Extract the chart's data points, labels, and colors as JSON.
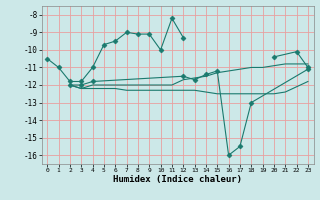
{
  "xlabel": "Humidex (Indice chaleur)",
  "ylabel": "",
  "background_color": "#cce8e8",
  "grid_color": "#e8a0a0",
  "line_color": "#1a7a6e",
  "xlim": [
    -0.5,
    23.5
  ],
  "ylim": [
    -16.5,
    -7.5
  ],
  "yticks": [
    -8,
    -9,
    -10,
    -11,
    -12,
    -13,
    -14,
    -15,
    -16
  ],
  "xticks": [
    0,
    1,
    2,
    3,
    4,
    5,
    6,
    7,
    8,
    9,
    10,
    11,
    12,
    13,
    14,
    15,
    16,
    17,
    18,
    19,
    20,
    21,
    22,
    23
  ],
  "lines": [
    {
      "x": [
        0,
        1,
        2,
        3,
        4,
        5,
        6,
        7,
        8,
        9,
        10,
        11,
        12
      ],
      "y": [
        -10.5,
        -11.0,
        -11.8,
        -11.8,
        -11.0,
        -9.7,
        -9.5,
        -9.0,
        -9.1,
        -9.1,
        -10.0,
        -8.2,
        -9.3
      ],
      "marker": "D",
      "markersize": 2.5
    },
    {
      "x": [
        20,
        22,
        23
      ],
      "y": [
        -10.4,
        -10.1,
        -11.0
      ],
      "marker": "D",
      "markersize": 2.5
    },
    {
      "x": [
        2,
        3,
        4,
        12,
        13,
        14,
        15,
        16,
        17,
        18,
        23
      ],
      "y": [
        -12.0,
        -12.0,
        -11.8,
        -11.5,
        -11.7,
        -11.4,
        -11.2,
        -16.0,
        -15.5,
        -13.0,
        -11.1
      ],
      "marker": "D",
      "markersize": 2.5
    },
    {
      "x": [
        2,
        3,
        4,
        5,
        6,
        7,
        8,
        9,
        10,
        11,
        12,
        13,
        14,
        15,
        16,
        17,
        18,
        19,
        20,
        21,
        23
      ],
      "y": [
        -12.0,
        -12.2,
        -12.0,
        -12.0,
        -12.0,
        -12.0,
        -12.0,
        -12.0,
        -12.0,
        -12.0,
        -11.7,
        -11.6,
        -11.5,
        -11.3,
        -11.2,
        -11.1,
        -11.0,
        -11.0,
        -10.9,
        -10.8,
        -10.8
      ],
      "marker": null,
      "markersize": 0
    },
    {
      "x": [
        2,
        3,
        4,
        5,
        6,
        7,
        8,
        9,
        10,
        11,
        12,
        13,
        14,
        15,
        16,
        17,
        18,
        19,
        20,
        21,
        23
      ],
      "y": [
        -12.0,
        -12.2,
        -12.2,
        -12.2,
        -12.2,
        -12.3,
        -12.3,
        -12.3,
        -12.3,
        -12.3,
        -12.3,
        -12.3,
        -12.4,
        -12.5,
        -12.5,
        -12.5,
        -12.5,
        -12.5,
        -12.5,
        -12.4,
        -11.8
      ],
      "marker": null,
      "markersize": 0
    }
  ]
}
